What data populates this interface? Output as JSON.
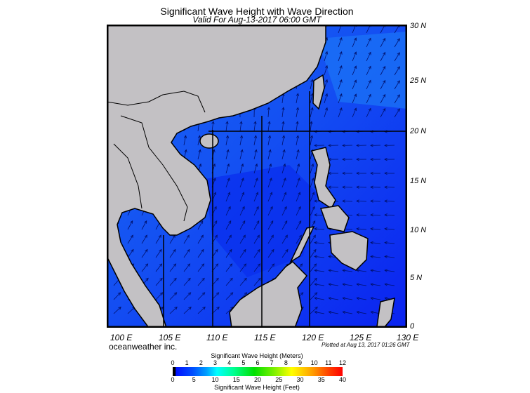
{
  "title": "Significant Wave Height with Wave Direction",
  "subtitle": "Valid For Aug-13-2017 06:00 GMT",
  "map": {
    "lat_labels": [
      "30 N",
      "25 N",
      "20 N",
      "15 N",
      "10 N",
      "5 N",
      "0"
    ],
    "lon_labels": [
      "100 E",
      "105 E",
      "110 E",
      "115 E",
      "120 E",
      "125 E",
      "130 E"
    ],
    "extent": {
      "lon": [
        100,
        130
      ],
      "lat": [
        0,
        30
      ]
    },
    "colors": {
      "land": "#c3c1c4",
      "ocean_low": "#0a22f0",
      "ocean_mid": "#1450f2",
      "ocean_light": "#1a6af5",
      "arrow": "#00106a"
    },
    "layers": [
      "significant wave height shading",
      "wave direction arrows",
      "coastlines",
      "country borders"
    ]
  },
  "credit": "oceanweather inc.",
  "plotted": "Plotted at Aug 13, 2017 01:26 GMT",
  "legend": {
    "meters_title": "Significant Wave Height (Meters)",
    "meters_ticks": [
      "0",
      "1",
      "2",
      "3",
      "4",
      "5",
      "6",
      "7",
      "8",
      "9",
      "10",
      "11",
      "12"
    ],
    "feet_ticks": [
      "0",
      "5",
      "10",
      "15",
      "20",
      "25",
      "30",
      "35",
      "40"
    ],
    "feet_title": "Significant Wave Height (Feet)"
  }
}
